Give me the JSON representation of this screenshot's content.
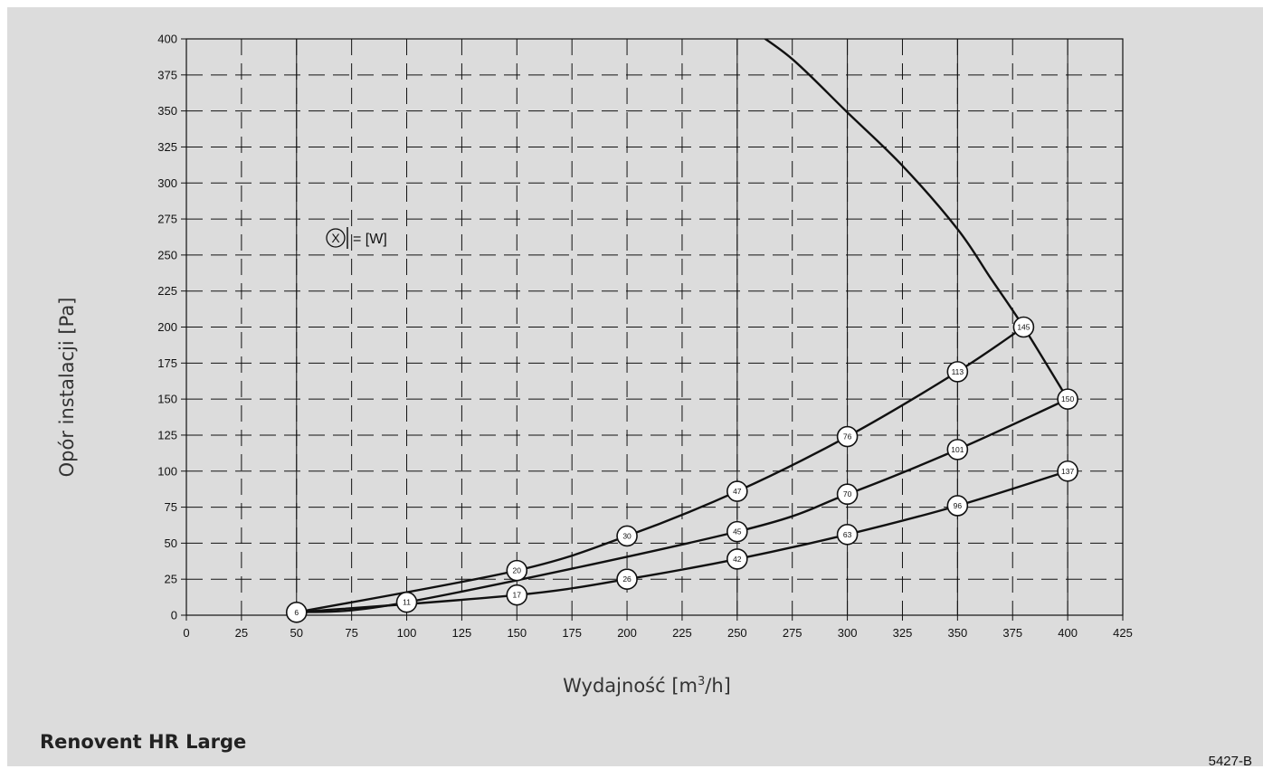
{
  "figure": {
    "title": "Renovent HR Large",
    "code": "5427-B"
  },
  "chart_data": {
    "type": "line",
    "xlabel_pre": "Wydajność [m",
    "xlabel_sup": "3",
    "xlabel_post": "/h]",
    "ylabel": "Opór instalacji [Pa]",
    "xlim": [
      0,
      425
    ],
    "ylim": [
      0,
      400
    ],
    "xticks": [
      0,
      25,
      50,
      75,
      100,
      125,
      150,
      175,
      200,
      225,
      250,
      275,
      300,
      325,
      350,
      375,
      400,
      425
    ],
    "yticks": [
      0,
      25,
      50,
      75,
      100,
      125,
      150,
      175,
      200,
      225,
      250,
      275,
      300,
      325,
      350,
      375,
      400
    ],
    "grid": "dashed",
    "legend_text": "= [W]",
    "legend_symbol": "X",
    "series": [
      {
        "points": [
          {
            "x": 50,
            "y": 2,
            "w": "6"
          },
          {
            "x": 150,
            "y": 31,
            "w": "20"
          },
          {
            "x": 200,
            "y": 55,
            "w": "30"
          },
          {
            "x": 250,
            "y": 86,
            "w": "47"
          },
          {
            "x": 300,
            "y": 124,
            "w": "76"
          },
          {
            "x": 350,
            "y": 169,
            "w": "113"
          },
          {
            "x": 380,
            "y": 200,
            "w": "145"
          }
        ]
      },
      {
        "points": [
          {
            "x": 50,
            "y": 2
          },
          {
            "x": 100,
            "y": 9,
            "w": "11"
          },
          {
            "x": 250,
            "y": 58,
            "w": "45"
          },
          {
            "x": 300,
            "y": 84,
            "w": "70"
          },
          {
            "x": 350,
            "y": 115,
            "w": "101"
          },
          {
            "x": 400,
            "y": 150,
            "w": "150"
          }
        ]
      },
      {
        "points": [
          {
            "x": 50,
            "y": 2
          },
          {
            "x": 150,
            "y": 14,
            "w": "17"
          },
          {
            "x": 200,
            "y": 25,
            "w": "26"
          },
          {
            "x": 250,
            "y": 39,
            "w": "42"
          },
          {
            "x": 300,
            "y": 56,
            "w": "63"
          },
          {
            "x": 350,
            "y": 76,
            "w": "96"
          },
          {
            "x": 400,
            "y": 100,
            "w": "137"
          }
        ]
      },
      {
        "points": [
          {
            "x": 255,
            "y": 408
          },
          {
            "x": 275,
            "y": 386
          },
          {
            "x": 300,
            "y": 349
          },
          {
            "x": 325,
            "y": 312
          },
          {
            "x": 350,
            "y": 268
          },
          {
            "x": 365,
            "y": 234
          },
          {
            "x": 380,
            "y": 200
          },
          {
            "x": 400,
            "y": 150
          }
        ]
      }
    ]
  }
}
